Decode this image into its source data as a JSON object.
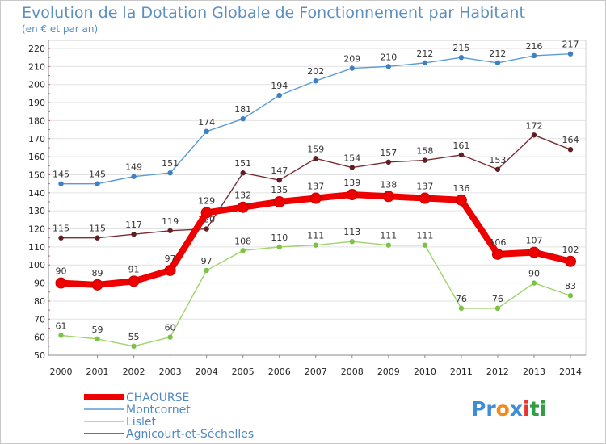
{
  "chart_data": {
    "type": "line",
    "title": "Evolution de la Dotation Globale de Fonctionnement par Habitant",
    "subtitle": "(en € et par an)",
    "xlabel": "",
    "ylabel": "",
    "ylim": [
      50,
      220
    ],
    "yticks": [
      50,
      60,
      70,
      80,
      90,
      100,
      110,
      120,
      130,
      140,
      150,
      160,
      170,
      180,
      190,
      200,
      210,
      220
    ],
    "x": [
      "2000",
      "2001",
      "2002",
      "2003",
      "2004",
      "2005",
      "2006",
      "2007",
      "2008",
      "2009",
      "2010",
      "2011",
      "2012",
      "2013",
      "2014"
    ],
    "grid": true,
    "legend_position": "bottom-left",
    "series": [
      {
        "name": "Montcornet",
        "color": "#5b9bd5",
        "point_color": "#3f7fc4",
        "values": [
          145,
          145,
          149,
          151,
          174,
          181,
          194,
          202,
          209,
          210,
          212,
          215,
          212,
          216,
          217
        ],
        "labels": [
          "145",
          "145",
          "149",
          "151",
          "174",
          "181",
          "194",
          "202",
          "209",
          "210",
          "212",
          "215",
          "212",
          "216",
          "217"
        ]
      },
      {
        "name": "Agnicourt-et-Séchelles",
        "color": "#7a2e33",
        "point_color": "#5e1e23",
        "values": [
          115,
          115,
          117,
          119,
          120,
          151,
          147,
          159,
          154,
          157,
          158,
          161,
          153,
          172,
          164
        ],
        "labels": [
          "115",
          "115",
          "117",
          "119",
          "120",
          "151",
          "147",
          "159",
          "154",
          "157",
          "158",
          "161",
          "153",
          "172",
          "164"
        ]
      },
      {
        "name": "Lislet",
        "color": "#9ed46a",
        "point_color": "#7cc245",
        "values": [
          61,
          59,
          55,
          60,
          97,
          108,
          110,
          111,
          113,
          111,
          111,
          76,
          76,
          90,
          83
        ],
        "labels": [
          "61",
          "59",
          "55",
          "60",
          "97",
          "108",
          "110",
          "111",
          "113",
          "111",
          "111",
          "76",
          "76",
          "90",
          "83"
        ]
      },
      {
        "name": "CHAOURSE",
        "color": "#ee0000",
        "point_color": "#ee0000",
        "values": [
          90,
          89,
          91,
          97,
          129,
          132,
          135,
          137,
          139,
          138,
          137,
          136,
          106,
          107,
          102
        ],
        "labels": [
          "90",
          "89",
          "91",
          "97",
          "129",
          "132",
          "135",
          "137",
          "139",
          "138",
          "137",
          "136",
          "106",
          "107",
          "102"
        ]
      }
    ],
    "legend": [
      "CHAOURSE",
      "Montcornet",
      "Lislet",
      "Agnicourt-et-Séchelles"
    ]
  },
  "logo": {
    "letters": [
      "P",
      "r",
      "o",
      "x",
      "i",
      "t",
      "i"
    ],
    "colors": [
      "#3c8fd6",
      "#3c8fd6",
      "#f08a1c",
      "#3c8fd6",
      "#e7342f",
      "#2f9e44",
      "#2f9e44"
    ]
  }
}
